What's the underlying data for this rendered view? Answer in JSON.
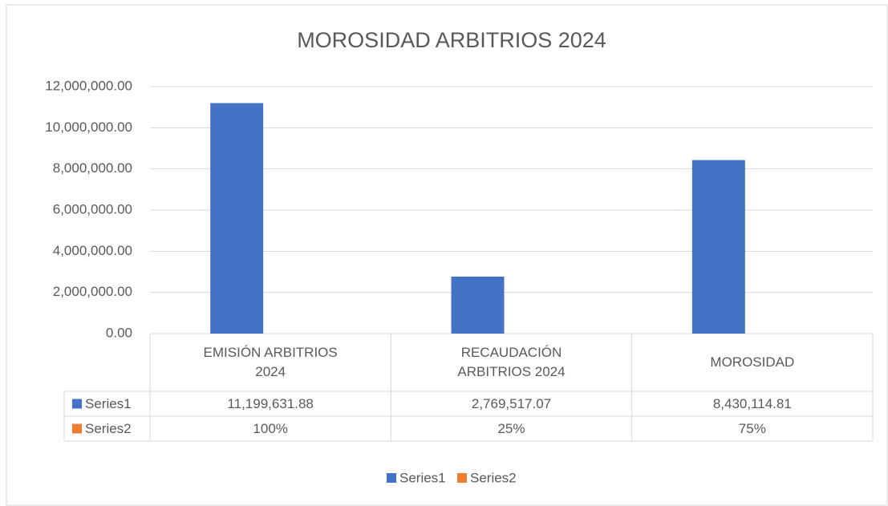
{
  "chart_data": {
    "type": "bar",
    "title": "MOROSIDAD ARBITRIOS 2024",
    "categories": [
      "EMISIÓN ARBITRIOS 2024",
      "RECAUDACIÓN ARBITRIOS 2024",
      "MOROSIDAD"
    ],
    "series": [
      {
        "name": "Series1",
        "color": "#4472c4",
        "values": [
          11199631.88,
          2769517.07,
          8430114.81
        ],
        "value_labels": [
          "11,199,631.88",
          "2,769,517.07",
          "8,430,114.81"
        ]
      },
      {
        "name": "Series2",
        "color": "#ed7d31",
        "values": [
          100,
          25,
          75
        ],
        "value_labels": [
          "100%",
          "25%",
          "75%"
        ]
      }
    ],
    "ylim": [
      0,
      12000000
    ],
    "yticks": [
      {
        "value": 0,
        "label": "0.00"
      },
      {
        "value": 2000000,
        "label": "2,000,000.00"
      },
      {
        "value": 4000000,
        "label": "4,000,000.00"
      },
      {
        "value": 6000000,
        "label": "6,000,000.00"
      },
      {
        "value": 8000000,
        "label": "8,000,000.00"
      },
      {
        "value": 10000000,
        "label": "10,000,000.00"
      },
      {
        "value": 12000000,
        "label": "12,000,000.00"
      }
    ],
    "grid": true,
    "legend": "bottom",
    "data_table": true
  }
}
